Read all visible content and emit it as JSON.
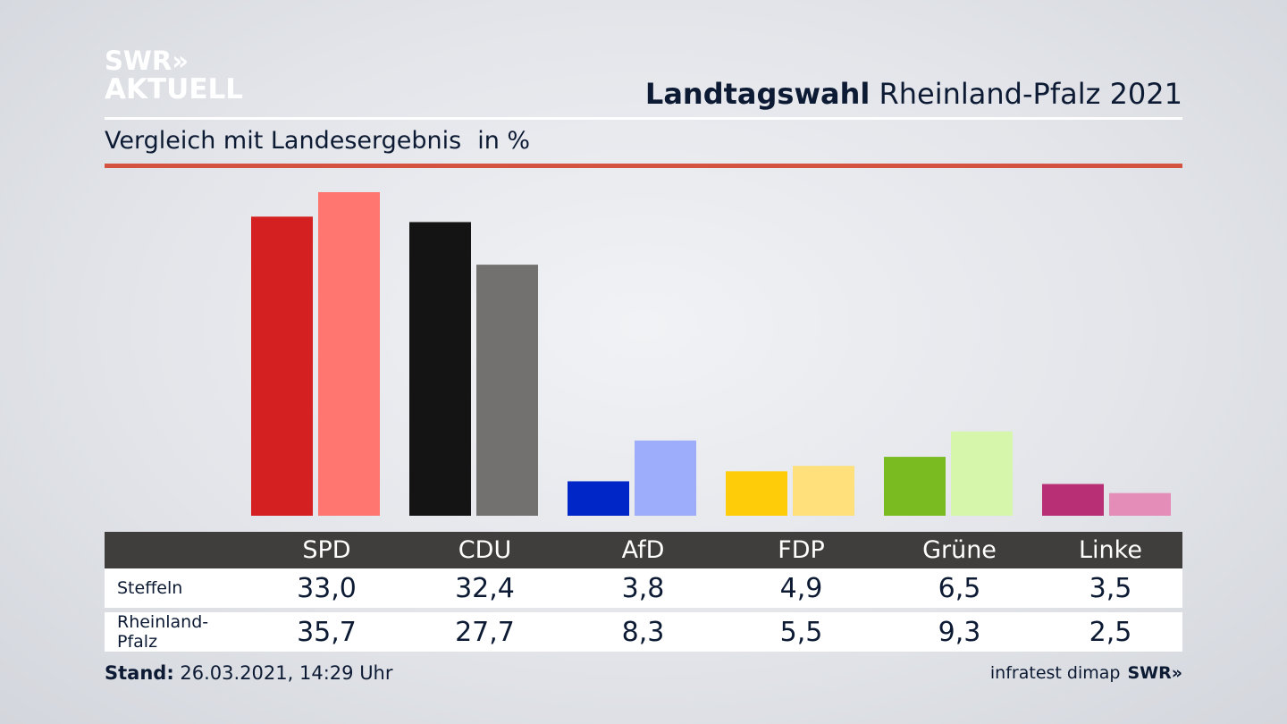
{
  "logo": {
    "line1": "SWR»",
    "line2": "AKTUELL"
  },
  "header": {
    "title_bold": "Landtagswahl",
    "title_rest": "Rheinland-Pfalz 2021"
  },
  "subtitle": {
    "text": "Vergleich mit Landesergebnis",
    "unit": "in %"
  },
  "chart_data": {
    "type": "bar",
    "categories": [
      "SPD",
      "CDU",
      "AfD",
      "FDP",
      "Grüne",
      "Linke"
    ],
    "series": [
      {
        "name": "Steffeln",
        "values": [
          33.0,
          32.4,
          3.8,
          4.9,
          6.5,
          3.5
        ],
        "display": [
          "33,0",
          "32,4",
          "3,8",
          "4,9",
          "6,5",
          "3,5"
        ]
      },
      {
        "name": "Rheinland-Pfalz",
        "values": [
          35.7,
          27.7,
          8.3,
          5.5,
          9.3,
          2.5
        ],
        "display": [
          "35,7",
          "27,7",
          "8,3",
          "5,5",
          "9,3",
          "2,5"
        ]
      }
    ],
    "colors": {
      "Steffeln": [
        "#d42020",
        "#141414",
        "#0026c8",
        "#ffcc0a",
        "#79bb21",
        "#b82f75"
      ],
      "Rheinland-Pfalz": [
        "#ff7570",
        "#737170",
        "#9dadfc",
        "#ffe07a",
        "#d5f6ab",
        "#e48db9"
      ]
    },
    "ylim": [
      0,
      35.7
    ],
    "grid": false,
    "xlabel": "",
    "ylabel": ""
  },
  "footer": {
    "stand_label": "Stand:",
    "stand_value": "26.03.2021, 14:29 Uhr",
    "source": "infratest dimap",
    "source_logo": "SWR»"
  }
}
